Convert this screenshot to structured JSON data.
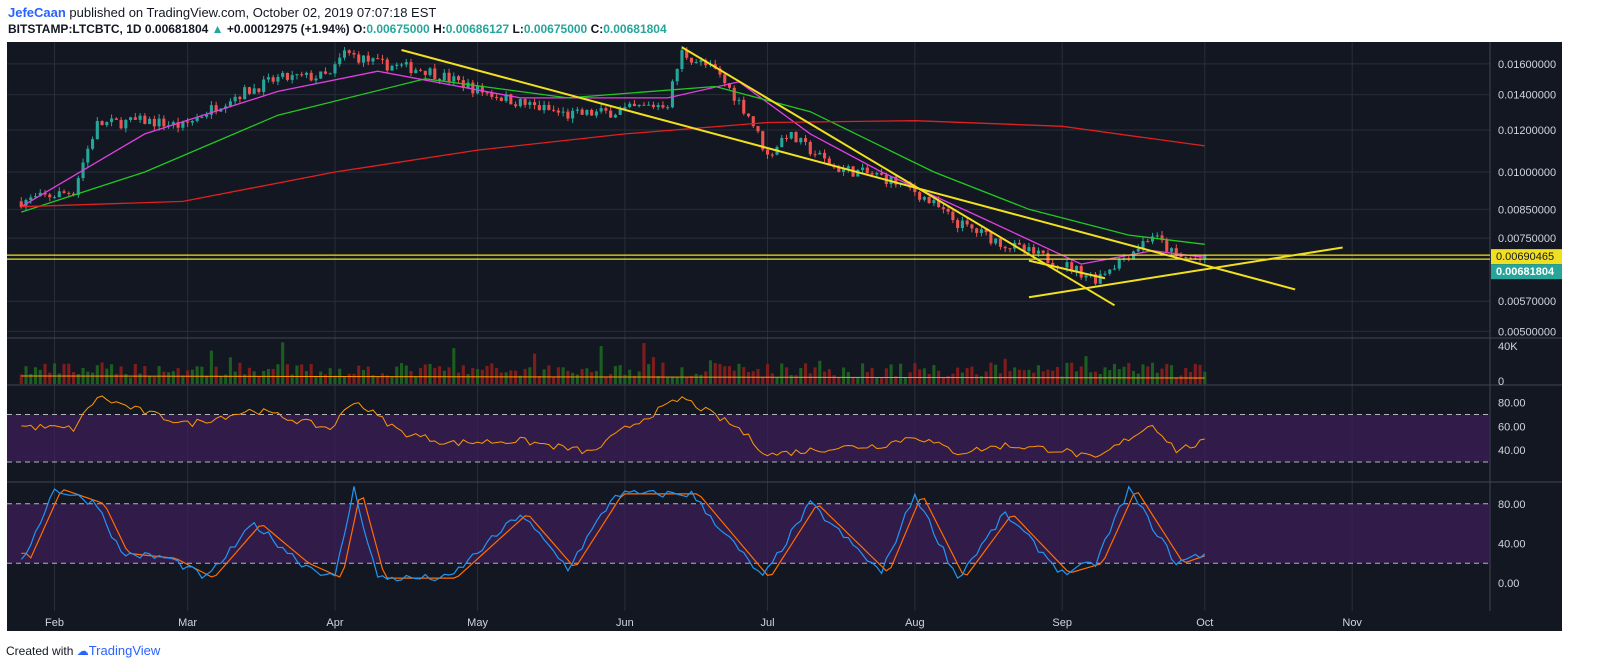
{
  "header": {
    "author": "JefeCaan",
    "published": " published on TradingView.com, October 02, 2019 07:07:18 EST",
    "symbol": "BITSTAMP:LTCBTC, 1D",
    "last": "0.00681804",
    "change": "+0.00012975 (+1.94%)",
    "o_label": "O:",
    "o": "0.00675000",
    "h_label": "H:",
    "h": "0.00686127",
    "l_label": "L:",
    "l": "0.00675000",
    "c_label": "C:",
    "c": "0.00681804"
  },
  "footer": {
    "created": "Created with",
    "brand": "TradingView"
  },
  "colors": {
    "background": "#131722",
    "grid": "#2a2e39",
    "ema_fast": "#e040e0",
    "ma_mid": "#22c822",
    "ma_slow": "#e02020",
    "trendline": "#f0e020",
    "up": "#26a69a",
    "down": "#ef5350",
    "rsi": "#ff9800",
    "stoch_k": "#2196f3",
    "stoch_d": "#ff6d00",
    "band": "#3d1e5a"
  },
  "chart_data": {
    "type": "candlestick",
    "x_ticks": [
      "Feb",
      "Mar",
      "Apr",
      "May",
      "Jun",
      "Jul",
      "Aug",
      "Sep",
      "Oct",
      "Nov"
    ],
    "price_axis": {
      "ticks": [
        "0.01600000",
        "0.01400000",
        "0.01200000",
        "0.01000000",
        "0.00850000",
        "0.00750000",
        "0.00570000",
        "0.00500000"
      ],
      "tick_values": [
        0.016,
        0.014,
        0.012,
        0.01,
        0.0085,
        0.0075,
        0.0057,
        0.005
      ],
      "highlight_label": "0.00690465",
      "highlight_value": 0.00690465,
      "current_label": "0.00681804",
      "current_value": 0.00681804
    },
    "price_anchors": [
      [
        "2019-01-25",
        0.0088
      ],
      [
        "2019-02-05",
        0.0092
      ],
      [
        "2019-02-10",
        0.0123
      ],
      [
        "2019-02-20",
        0.0125
      ],
      [
        "2019-02-28",
        0.0122
      ],
      [
        "2019-03-10",
        0.0138
      ],
      [
        "2019-03-20",
        0.015
      ],
      [
        "2019-03-31",
        0.0152
      ],
      [
        "2019-04-03",
        0.0168
      ],
      [
        "2019-04-10",
        0.016
      ],
      [
        "2019-04-20",
        0.0156
      ],
      [
        "2019-05-01",
        0.0143
      ],
      [
        "2019-05-10",
        0.0135
      ],
      [
        "2019-05-20",
        0.0128
      ],
      [
        "2019-05-30",
        0.013
      ],
      [
        "2019-06-10",
        0.0135
      ],
      [
        "2019-06-13",
        0.0168
      ],
      [
        "2019-06-20",
        0.0155
      ],
      [
        "2019-06-27",
        0.0128
      ],
      [
        "2019-07-01",
        0.0107
      ],
      [
        "2019-07-05",
        0.0118
      ],
      [
        "2019-07-15",
        0.0102
      ],
      [
        "2019-07-25",
        0.0098
      ],
      [
        "2019-08-01",
        0.0092
      ],
      [
        "2019-08-10",
        0.008
      ],
      [
        "2019-08-20",
        0.0073
      ],
      [
        "2019-09-01",
        0.0067
      ],
      [
        "2019-09-08",
        0.0063
      ],
      [
        "2019-09-15",
        0.007
      ],
      [
        "2019-09-20",
        0.0076
      ],
      [
        "2019-09-25",
        0.0069
      ],
      [
        "2019-10-01",
        0.00682
      ]
    ],
    "moving_averages": [
      {
        "kind": "ema_fast",
        "points": [
          [
            "2019-01-25",
            0.0086
          ],
          [
            "2019-02-20",
            0.0118
          ],
          [
            "2019-03-20",
            0.0142
          ],
          [
            "2019-04-10",
            0.0155
          ],
          [
            "2019-05-10",
            0.0138
          ],
          [
            "2019-06-10",
            0.0138
          ],
          [
            "2019-06-25",
            0.0148
          ],
          [
            "2019-07-10",
            0.0118
          ],
          [
            "2019-07-25",
            0.01
          ],
          [
            "2019-08-15",
            0.0082
          ],
          [
            "2019-09-05",
            0.0067
          ],
          [
            "2019-09-20",
            0.0071
          ],
          [
            "2019-10-01",
            0.0069
          ]
        ]
      },
      {
        "kind": "ma_mid",
        "points": [
          [
            "2019-01-25",
            0.0084
          ],
          [
            "2019-02-20",
            0.01
          ],
          [
            "2019-03-20",
            0.0128
          ],
          [
            "2019-04-20",
            0.015
          ],
          [
            "2019-05-20",
            0.0138
          ],
          [
            "2019-06-20",
            0.0145
          ],
          [
            "2019-07-10",
            0.013
          ],
          [
            "2019-08-05",
            0.01
          ],
          [
            "2019-08-25",
            0.0085
          ],
          [
            "2019-09-15",
            0.0076
          ],
          [
            "2019-10-01",
            0.0073
          ]
        ]
      },
      {
        "kind": "ma_slow",
        "points": [
          [
            "2019-01-25",
            0.0086
          ],
          [
            "2019-02-28",
            0.0088
          ],
          [
            "2019-04-01",
            0.01
          ],
          [
            "2019-05-01",
            0.011
          ],
          [
            "2019-06-01",
            0.0118
          ],
          [
            "2019-07-01",
            0.0124
          ],
          [
            "2019-08-01",
            0.0125
          ],
          [
            "2019-09-01",
            0.0122
          ],
          [
            "2019-10-01",
            0.0112
          ]
        ]
      }
    ],
    "trendlines": [
      [
        [
          "2019-04-15",
          0.017
        ],
        [
          "2019-10-20",
          0.006
        ]
      ],
      [
        [
          "2019-06-13",
          0.0172
        ],
        [
          "2019-09-12",
          0.0056
        ]
      ],
      [
        [
          "2019-08-25",
          0.0068
        ],
        [
          "2019-09-10",
          0.0063
        ]
      ],
      [
        [
          "2019-08-25",
          0.0058
        ],
        [
          "2019-10-30",
          0.0072
        ]
      ]
    ],
    "volume": {
      "axis_ticks": [
        "40K",
        "0"
      ]
    },
    "rsi": {
      "axis_ticks": [
        "80.00",
        "60.00",
        "40.00"
      ],
      "bands": [
        70,
        30
      ],
      "anchors": [
        [
          "2019-01-25",
          60
        ],
        [
          "2019-02-05",
          58
        ],
        [
          "2019-02-10",
          85
        ],
        [
          "2019-02-20",
          72
        ],
        [
          "2019-03-01",
          62
        ],
        [
          "2019-03-15",
          74
        ],
        [
          "2019-03-31",
          58
        ],
        [
          "2019-04-05",
          82
        ],
        [
          "2019-04-15",
          55
        ],
        [
          "2019-04-25",
          46
        ],
        [
          "2019-05-10",
          48
        ],
        [
          "2019-05-25",
          38
        ],
        [
          "2019-06-01",
          58
        ],
        [
          "2019-06-13",
          84
        ],
        [
          "2019-06-25",
          58
        ],
        [
          "2019-07-01",
          36
        ],
        [
          "2019-07-15",
          42
        ],
        [
          "2019-07-25",
          44
        ],
        [
          "2019-08-01",
          52
        ],
        [
          "2019-08-10",
          38
        ],
        [
          "2019-08-20",
          44
        ],
        [
          "2019-09-01",
          40
        ],
        [
          "2019-09-08",
          32
        ],
        [
          "2019-09-15",
          50
        ],
        [
          "2019-09-20",
          62
        ],
        [
          "2019-09-25",
          40
        ],
        [
          "2019-10-01",
          47
        ]
      ]
    },
    "stoch_rsi": {
      "axis_ticks": [
        "80.00",
        "40.00",
        "0.00"
      ],
      "bands": [
        80,
        20
      ],
      "anchors": [
        [
          "2019-01-25",
          20
        ],
        [
          "2019-02-01",
          95
        ],
        [
          "2019-02-10",
          80
        ],
        [
          "2019-02-15",
          30
        ],
        [
          "2019-02-25",
          25
        ],
        [
          "2019-03-05",
          5
        ],
        [
          "2019-03-15",
          60
        ],
        [
          "2019-03-25",
          20
        ],
        [
          "2019-04-01",
          5
        ],
        [
          "2019-04-05",
          95
        ],
        [
          "2019-04-10",
          5
        ],
        [
          "2019-04-25",
          5
        ],
        [
          "2019-05-10",
          70
        ],
        [
          "2019-05-20",
          15
        ],
        [
          "2019-05-30",
          90
        ],
        [
          "2019-06-15",
          90
        ],
        [
          "2019-06-30",
          5
        ],
        [
          "2019-07-10",
          80
        ],
        [
          "2019-07-25",
          10
        ],
        [
          "2019-08-01",
          90
        ],
        [
          "2019-08-10",
          5
        ],
        [
          "2019-08-20",
          70
        ],
        [
          "2019-09-01",
          10
        ],
        [
          "2019-09-08",
          20
        ],
        [
          "2019-09-15",
          95
        ],
        [
          "2019-09-25",
          20
        ],
        [
          "2019-10-01",
          30
        ]
      ]
    }
  }
}
